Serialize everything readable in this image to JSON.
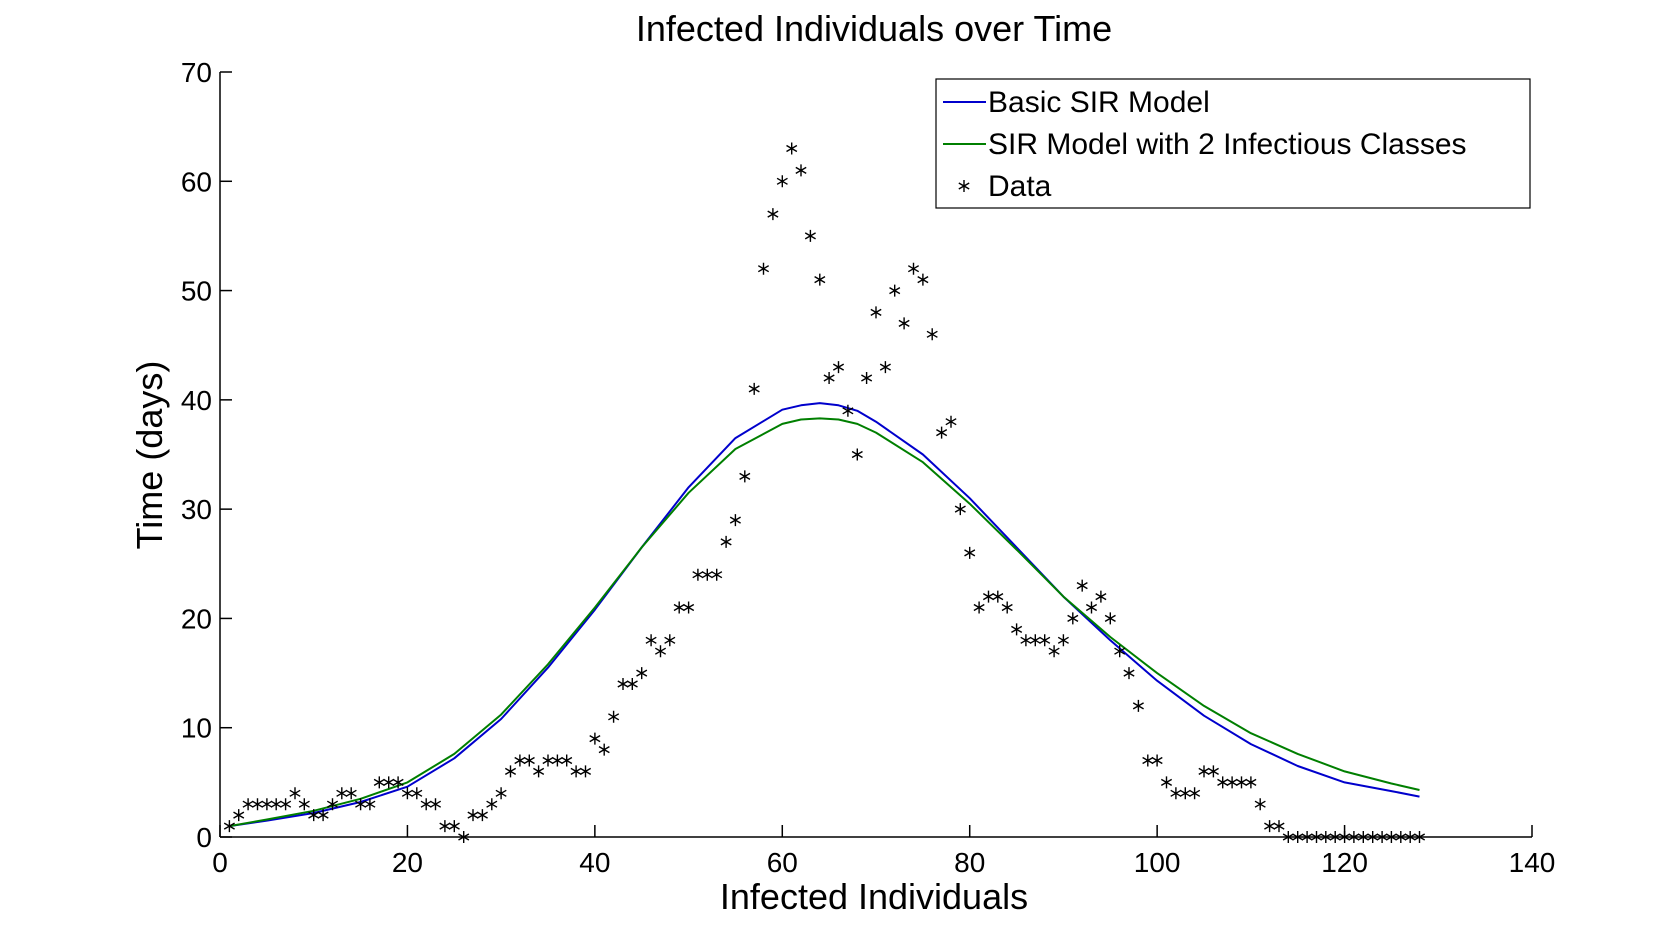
{
  "chart_data": {
    "type": "line",
    "title": "Infected Individuals over Time",
    "xlabel": "Infected Individuals",
    "ylabel": "Time (days)",
    "xlim": [
      0,
      140
    ],
    "ylim": [
      0,
      70
    ],
    "xticks": [
      0,
      20,
      40,
      60,
      80,
      100,
      120,
      140
    ],
    "yticks": [
      0,
      10,
      20,
      30,
      40,
      50,
      60,
      70
    ],
    "grid": false,
    "legend_position": "top-right",
    "series": [
      {
        "name": "Basic SIR Model",
        "style": "line",
        "color": "#0000cc",
        "x": [
          1,
          5,
          10,
          15,
          20,
          25,
          30,
          35,
          40,
          45,
          50,
          55,
          60,
          62,
          64,
          66,
          68,
          70,
          75,
          80,
          85,
          90,
          95,
          100,
          105,
          110,
          115,
          120,
          125,
          128
        ],
        "y": [
          1.0,
          1.5,
          2.2,
          3.2,
          4.6,
          7.2,
          10.8,
          15.5,
          20.8,
          26.5,
          32.0,
          36.5,
          39.1,
          39.5,
          39.7,
          39.5,
          39.0,
          38.0,
          35.0,
          31.0,
          26.5,
          22.0,
          18.0,
          14.3,
          11.1,
          8.5,
          6.5,
          5.0,
          4.2,
          3.7
        ]
      },
      {
        "name": "SIR Model with 2 Infectious Classes",
        "style": "line",
        "color": "#007f00",
        "x": [
          1,
          5,
          10,
          15,
          20,
          25,
          30,
          35,
          40,
          45,
          50,
          55,
          60,
          62,
          64,
          66,
          68,
          70,
          75,
          80,
          85,
          90,
          95,
          100,
          105,
          110,
          115,
          120,
          125,
          128
        ],
        "y": [
          1.0,
          1.6,
          2.4,
          3.5,
          5.0,
          7.6,
          11.2,
          15.8,
          21.0,
          26.5,
          31.5,
          35.5,
          37.8,
          38.2,
          38.3,
          38.2,
          37.8,
          37.0,
          34.3,
          30.5,
          26.3,
          22.0,
          18.3,
          15.0,
          12.0,
          9.5,
          7.6,
          6.0,
          4.9,
          4.3
        ]
      },
      {
        "name": "Data",
        "style": "marker",
        "color": "#000000",
        "x": [
          1,
          2,
          3,
          4,
          5,
          6,
          7,
          8,
          9,
          10,
          11,
          12,
          13,
          14,
          15,
          16,
          17,
          18,
          19,
          20,
          21,
          22,
          23,
          24,
          25,
          26,
          27,
          28,
          29,
          30,
          31,
          32,
          33,
          34,
          35,
          36,
          37,
          38,
          39,
          40,
          41,
          42,
          43,
          44,
          45,
          46,
          47,
          48,
          49,
          50,
          51,
          52,
          53,
          54,
          55,
          56,
          57,
          58,
          59,
          60,
          61,
          62,
          63,
          64,
          65,
          66,
          67,
          68,
          69,
          70,
          71,
          72,
          73,
          74,
          75,
          76,
          77,
          78,
          79,
          80,
          81,
          82,
          83,
          84,
          85,
          86,
          87,
          88,
          89,
          90,
          91,
          92,
          93,
          94,
          95,
          96,
          97,
          98,
          99,
          100,
          101,
          102,
          103,
          104,
          105,
          106,
          107,
          108,
          109,
          110,
          111,
          112,
          113,
          114,
          115,
          116,
          117,
          118,
          119,
          120,
          121,
          122,
          123,
          124,
          125,
          126,
          127,
          128
        ],
        "y": [
          1,
          2,
          3,
          3,
          3,
          3,
          3,
          4,
          3,
          2,
          2,
          3,
          4,
          4,
          3,
          3,
          5,
          5,
          5,
          4,
          4,
          3,
          3,
          1,
          1,
          0,
          2,
          2,
          3,
          4,
          6,
          7,
          7,
          6,
          7,
          7,
          7,
          6,
          6,
          9,
          8,
          11,
          14,
          14,
          15,
          18,
          17,
          18,
          21,
          21,
          24,
          24,
          24,
          27,
          29,
          33,
          41,
          52,
          57,
          60,
          63,
          61,
          55,
          51,
          42,
          43,
          39,
          35,
          42,
          48,
          43,
          50,
          47,
          52,
          51,
          46,
          37,
          38,
          30,
          26,
          21,
          22,
          22,
          21,
          19,
          18,
          18,
          18,
          17,
          18,
          20,
          23,
          21,
          22,
          20,
          17,
          15,
          12,
          7,
          7,
          5,
          4,
          4,
          4,
          6,
          6,
          5,
          5,
          5,
          5,
          3,
          1,
          1,
          0,
          0,
          0,
          0,
          0,
          0,
          0,
          0,
          0,
          0,
          0,
          0,
          0,
          0,
          0
        ]
      }
    ]
  }
}
